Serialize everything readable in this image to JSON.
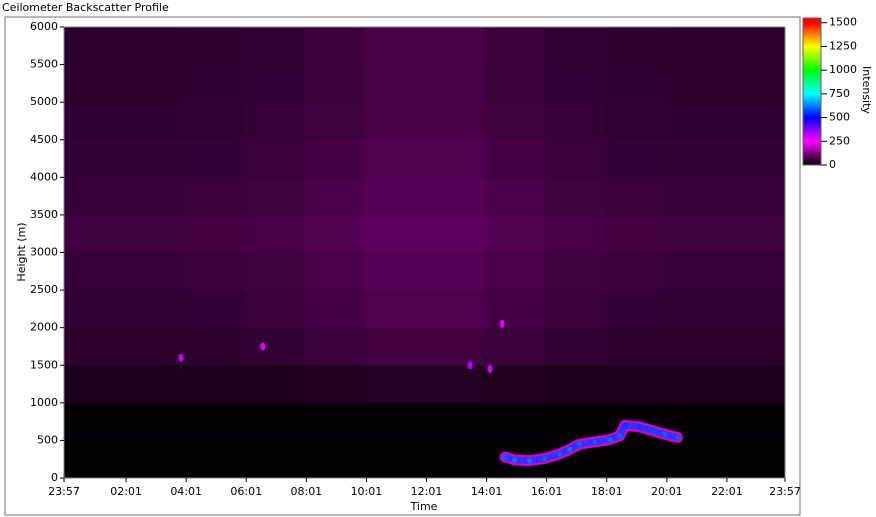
{
  "window_title": "Ceilometer Backscatter Profile",
  "chart_data": {
    "type": "heatmap",
    "x_label": "Time",
    "y_label": "Height (m)",
    "colorbar_label": "Intensity",
    "xlim": [
      0,
      1440
    ],
    "xticks": [
      {
        "value": 0,
        "label": "23:57"
      },
      {
        "value": 124,
        "label": "02:01"
      },
      {
        "value": 244,
        "label": "04:01"
      },
      {
        "value": 364,
        "label": "06:01"
      },
      {
        "value": 484,
        "label": "08:01"
      },
      {
        "value": 604,
        "label": "10:01"
      },
      {
        "value": 724,
        "label": "12:01"
      },
      {
        "value": 844,
        "label": "14:01"
      },
      {
        "value": 964,
        "label": "16:01"
      },
      {
        "value": 1084,
        "label": "18:01"
      },
      {
        "value": 1204,
        "label": "20:01"
      },
      {
        "value": 1324,
        "label": "22:01"
      },
      {
        "value": 1440,
        "label": "23:57"
      }
    ],
    "ylim": [
      0,
      6000
    ],
    "yticks": [
      0,
      500,
      1000,
      1500,
      2000,
      2500,
      3000,
      3500,
      4000,
      4500,
      5000,
      5500,
      6000
    ],
    "x_bins": [
      0,
      120,
      240,
      360,
      480,
      600,
      720,
      840,
      960,
      1080,
      1200,
      1320,
      1440
    ],
    "y_bins": [
      0,
      500,
      1000,
      1500,
      2000,
      2500,
      3000,
      3500,
      4000,
      4500,
      5000,
      5500,
      6000
    ],
    "z": [
      [
        4,
        4,
        4,
        4,
        4,
        4,
        4,
        4,
        4,
        4,
        4,
        4
      ],
      [
        8,
        8,
        8,
        8,
        8,
        8,
        8,
        8,
        8,
        8,
        8,
        8
      ],
      [
        25,
        25,
        25,
        28,
        32,
        35,
        35,
        32,
        28,
        25,
        25,
        25
      ],
      [
        45,
        45,
        45,
        50,
        58,
        65,
        65,
        58,
        50,
        45,
        45,
        45
      ],
      [
        50,
        50,
        52,
        58,
        68,
        78,
        78,
        68,
        58,
        52,
        50,
        50
      ],
      [
        55,
        55,
        58,
        64,
        74,
        84,
        84,
        74,
        64,
        58,
        55,
        55
      ],
      [
        62,
        62,
        65,
        70,
        80,
        90,
        90,
        80,
        70,
        65,
        62,
        62
      ],
      [
        55,
        55,
        58,
        64,
        74,
        84,
        84,
        74,
        64,
        58,
        55,
        55
      ],
      [
        50,
        50,
        52,
        58,
        68,
        78,
        78,
        68,
        58,
        52,
        50,
        50
      ],
      [
        46,
        46,
        48,
        54,
        62,
        72,
        72,
        62,
        54,
        48,
        46,
        46
      ],
      [
        44,
        44,
        46,
        52,
        60,
        70,
        70,
        60,
        52,
        46,
        44,
        44
      ],
      [
        42,
        42,
        44,
        50,
        60,
        72,
        72,
        60,
        50,
        44,
        42,
        42
      ]
    ],
    "layer": {
      "x": [
        881,
        900,
        930,
        960,
        990,
        1010,
        1030,
        1060,
        1090,
        1110,
        1120,
        1150,
        1180,
        1200,
        1225
      ],
      "y": [
        280,
        240,
        230,
        260,
        320,
        380,
        450,
        480,
        510,
        560,
        700,
        680,
        620,
        580,
        540
      ],
      "values": [
        600,
        620,
        620,
        600,
        600,
        620,
        600,
        600,
        620,
        600,
        550,
        560,
        580,
        600,
        600
      ]
    },
    "blobs": {
      "x": [
        234,
        397,
        811,
        851,
        875
      ],
      "y": [
        1600,
        1750,
        1500,
        1450,
        2050
      ],
      "values": [
        300,
        280,
        320,
        300,
        280
      ]
    },
    "clim": [
      0,
      1550
    ],
    "cticks": [
      0,
      250,
      500,
      750,
      1000,
      1250,
      1500
    ],
    "colorscale": [
      {
        "value": 0,
        "color": "#000000"
      },
      {
        "value": 250,
        "color": "#ff00ff"
      },
      {
        "value": 500,
        "color": "#0000ff"
      },
      {
        "value": 750,
        "color": "#00ffff"
      },
      {
        "value": 1000,
        "color": "#00ff00"
      },
      {
        "value": 1250,
        "color": "#ffff00"
      },
      {
        "value": 1500,
        "color": "#ff0000"
      }
    ]
  }
}
